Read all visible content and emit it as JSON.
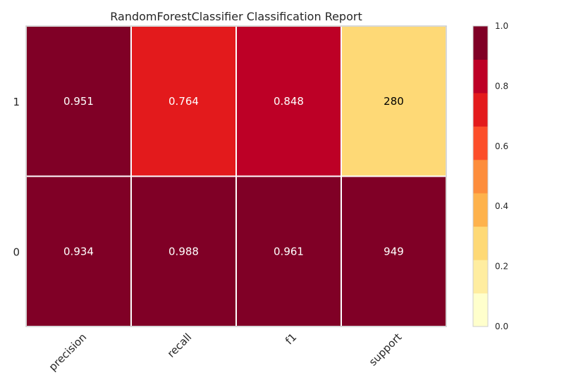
{
  "chart_data": {
    "type": "heatmap",
    "title": "RandomForestClassifier Classification Report",
    "classes": [
      "1",
      "0"
    ],
    "metrics": [
      "precision",
      "recall",
      "f1",
      "support"
    ],
    "values": [
      [
        0.951,
        0.764,
        0.848,
        280
      ],
      [
        0.934,
        0.988,
        0.961,
        949
      ]
    ],
    "cell_labels": [
      [
        "0.951",
        "0.764",
        "0.848",
        "280"
      ],
      [
        "0.934",
        "0.988",
        "0.961",
        "949"
      ]
    ],
    "color_values": [
      [
        0.951,
        0.764,
        0.848,
        0.295
      ],
      [
        0.934,
        0.988,
        0.961,
        1.0
      ]
    ],
    "colorbar": {
      "range": [
        0.0,
        1.0
      ],
      "ticks": [
        "0.0",
        "0.2",
        "0.4",
        "0.6",
        "0.8",
        "1.0"
      ],
      "colors": [
        "#ffffcc",
        "#ffeda0",
        "#fed976",
        "#feb24c",
        "#fd8d3c",
        "#fc4e2a",
        "#e31a1c",
        "#bd0026",
        "#800026"
      ]
    },
    "grid": false,
    "legend": "colorbar-right"
  }
}
